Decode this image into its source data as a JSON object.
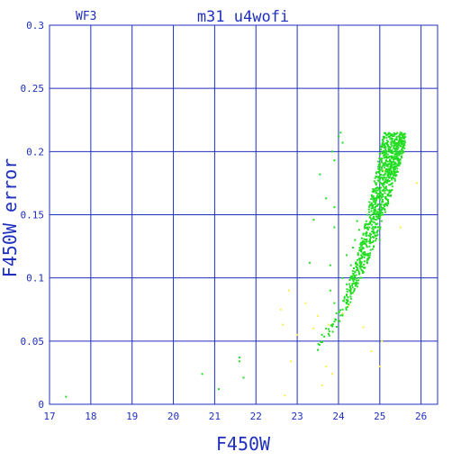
{
  "chart_data": {
    "type": "scatter",
    "title": "m31_u4wofi",
    "instrument_label": "WF3",
    "xlabel": "F450W",
    "ylabel": "F450W error",
    "xlim": [
      17,
      26.4
    ],
    "ylim": [
      0,
      0.3
    ],
    "grid": true,
    "x_ticks": [
      "17",
      "18",
      "19",
      "20",
      "21",
      "22",
      "23",
      "24",
      "25",
      "26"
    ],
    "y_ticks": [
      "0",
      "0.05",
      "0.1",
      "0.15",
      "0.2",
      "0.25",
      "0.3"
    ],
    "colors": {
      "axis": "#1f2fbf",
      "main": "#22dd22",
      "outlier": "#ffee44"
    },
    "series": [
      {
        "color": "green",
        "points": [
          [
            17.4,
            0.006
          ],
          [
            20.7,
            0.024
          ],
          [
            21.1,
            0.012
          ],
          [
            21.6,
            0.034
          ],
          [
            21.6,
            0.037
          ],
          [
            21.7,
            0.021
          ],
          [
            23.3,
            0.112
          ],
          [
            23.4,
            0.146
          ],
          [
            23.5,
            0.043
          ],
          [
            23.6,
            0.055
          ],
          [
            23.7,
            0.163
          ],
          [
            23.85,
            0.2
          ],
          [
            23.9,
            0.193
          ],
          [
            24.0,
            0.212
          ],
          [
            24.05,
            0.215
          ],
          [
            24.1,
            0.207
          ],
          [
            23.9,
            0.156
          ],
          [
            23.8,
            0.09
          ],
          [
            23.9,
            0.14
          ],
          [
            23.55,
            0.182
          ],
          [
            23.8,
            0.11
          ],
          [
            23.9,
            0.08
          ],
          [
            23.7,
            0.06
          ],
          [
            24.0,
            0.066
          ],
          [
            23.85,
            0.063
          ],
          [
            23.95,
            0.072
          ],
          [
            24.1,
            0.075
          ],
          [
            24.15,
            0.085
          ],
          [
            24.2,
            0.095
          ],
          [
            24.1,
            0.1
          ],
          [
            24.3,
            0.11
          ],
          [
            24.2,
            0.118
          ],
          [
            24.35,
            0.124
          ],
          [
            24.4,
            0.13
          ],
          [
            24.5,
            0.138
          ],
          [
            24.45,
            0.145
          ],
          [
            24.3,
            0.1
          ],
          [
            24.4,
            0.105
          ],
          [
            24.5,
            0.115
          ],
          [
            24.6,
            0.12
          ],
          [
            24.55,
            0.125
          ],
          [
            24.6,
            0.135
          ],
          [
            24.7,
            0.14
          ],
          [
            24.7,
            0.15
          ],
          [
            24.8,
            0.155
          ],
          [
            24.75,
            0.16
          ],
          [
            24.85,
            0.168
          ],
          [
            24.9,
            0.175
          ],
          [
            24.8,
            0.145
          ],
          [
            24.9,
            0.16
          ],
          [
            25.0,
            0.17
          ],
          [
            24.95,
            0.18
          ],
          [
            25.0,
            0.19
          ],
          [
            25.1,
            0.195
          ],
          [
            25.05,
            0.16
          ],
          [
            25.1,
            0.175
          ],
          [
            25.1,
            0.185
          ],
          [
            25.15,
            0.2
          ],
          [
            25.2,
            0.205
          ],
          [
            25.25,
            0.21
          ],
          [
            25.2,
            0.19
          ],
          [
            25.25,
            0.18
          ],
          [
            25.3,
            0.2
          ],
          [
            25.35,
            0.208
          ],
          [
            25.4,
            0.214
          ],
          [
            25.45,
            0.212
          ],
          [
            25.3,
            0.195
          ],
          [
            25.4,
            0.198
          ],
          [
            25.45,
            0.203
          ],
          [
            25.5,
            0.21
          ],
          [
            25.5,
            0.215
          ],
          [
            25.55,
            0.213
          ],
          [
            25.0,
            0.13
          ],
          [
            24.95,
            0.14
          ],
          [
            25.05,
            0.15
          ],
          [
            24.85,
            0.132
          ],
          [
            24.65,
            0.118
          ],
          [
            24.75,
            0.125
          ]
        ]
      },
      {
        "color": "yellow",
        "points": [
          [
            22.6,
            0.075
          ],
          [
            22.65,
            0.063
          ],
          [
            22.8,
            0.09
          ],
          [
            22.85,
            0.034
          ],
          [
            22.7,
            0.007
          ],
          [
            23.0,
            0.055
          ],
          [
            23.2,
            0.08
          ],
          [
            23.4,
            0.06
          ],
          [
            23.5,
            0.07
          ],
          [
            23.6,
            0.015
          ],
          [
            23.7,
            0.03
          ],
          [
            23.75,
            0.063
          ],
          [
            23.85,
            0.024
          ],
          [
            24.1,
            0.072
          ],
          [
            24.25,
            0.078
          ],
          [
            24.6,
            0.061
          ],
          [
            24.8,
            0.042
          ],
          [
            25.0,
            0.03
          ],
          [
            25.05,
            0.05
          ],
          [
            25.1,
            0.185
          ],
          [
            25.5,
            0.14
          ],
          [
            25.9,
            0.175
          ]
        ]
      }
    ]
  }
}
